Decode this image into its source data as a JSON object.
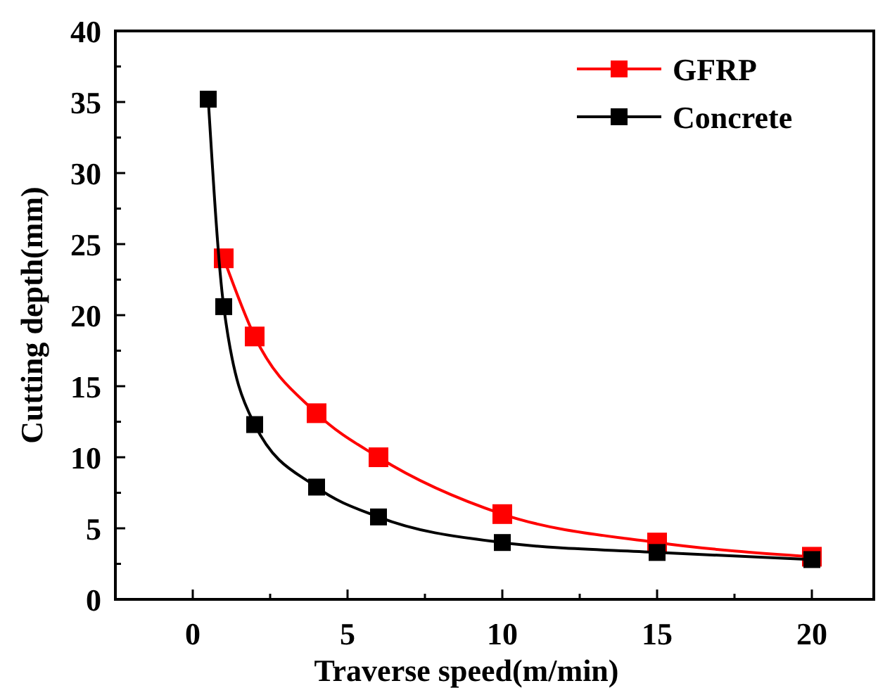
{
  "chart_data": {
    "type": "line",
    "xlabel": "Traverse speed(m/min)",
    "ylabel": "Cutting depth(mm)",
    "xlim": [
      -2.5,
      22
    ],
    "xticks": [
      0,
      {
        "value": 2.5,
        "label": null
      },
      5,
      {
        "value": 7.5,
        "label": null
      },
      10,
      {
        "value": 12.5,
        "label": null
      },
      15,
      {
        "value": 17.5,
        "label": null
      },
      20
    ],
    "ylim": [
      0,
      40
    ],
    "yticks": [
      0,
      {
        "value": 2.5,
        "label": null
      },
      5,
      {
        "value": 7.5,
        "label": null
      },
      10,
      {
        "value": 12.5,
        "label": null
      },
      15,
      {
        "value": 17.5,
        "label": null
      },
      20,
      {
        "value": 22.5,
        "label": null
      },
      25,
      {
        "value": 27.5,
        "label": null
      },
      30,
      {
        "value": 32.5,
        "label": null
      },
      35,
      {
        "value": 37.5,
        "label": null
      },
      40
    ],
    "grid": false,
    "legend": "top right",
    "marker": "square",
    "line_style": "solid",
    "series": [
      {
        "name": "GFRP",
        "color": "#ff0000",
        "x": [
          1,
          2,
          4,
          6,
          10,
          15,
          20
        ],
        "values": [
          24,
          18.5,
          13.1,
          10,
          6,
          4,
          3
        ]
      },
      {
        "name": "Concrete",
        "color": "#000000",
        "x": [
          0.5,
          1,
          2,
          4,
          6,
          10,
          15,
          20
        ],
        "values": [
          35.2,
          20.6,
          12.3,
          7.9,
          5.8,
          4,
          3.3,
          2.8
        ]
      }
    ]
  }
}
